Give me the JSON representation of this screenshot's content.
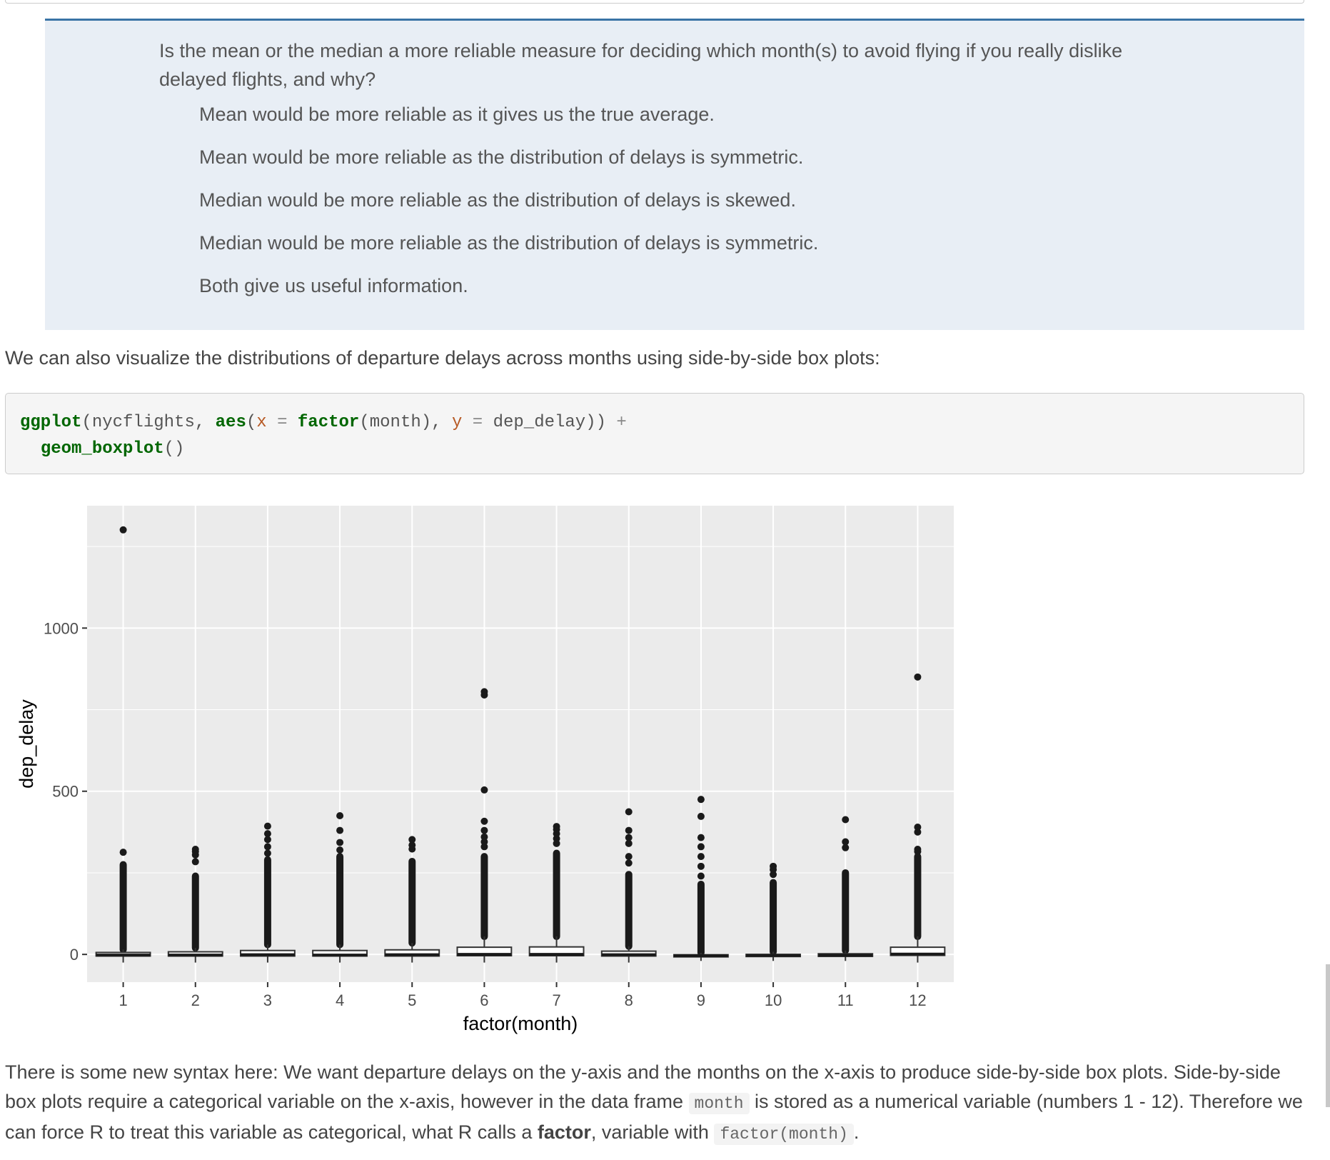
{
  "quiz": {
    "question": "Is the mean or the median a more reliable measure for deciding which month(s) to avoid flying if you really dislike delayed flights, and why?",
    "answers": [
      "Mean would be more reliable as it gives us the true average.",
      "Mean would be more reliable as the distribution of delays is symmetric.",
      "Median would be more reliable as the distribution of delays is skewed.",
      "Median would be more reliable as the distribution of delays is symmetric.",
      "Both give us useful information."
    ]
  },
  "intro_text": "We can also visualize the distributions of departure delays across months using side-by-side box plots:",
  "code": {
    "fn1": "ggplot",
    "p1": "(nycflights, ",
    "fn2": "aes",
    "p2": "(",
    "arg_x": "x",
    "eq1": " = ",
    "fn3": "factor",
    "p3": "(month), ",
    "arg_y": "y",
    "eq2": " = ",
    "p4": "dep_delay)) ",
    "plus": "+",
    "fn4": "geom_boxplot",
    "p5": "()"
  },
  "chart_data": {
    "type": "box",
    "xlabel": "factor(month)",
    "ylabel": "dep_delay",
    "ylim": [
      -85,
      1375
    ],
    "yticks": [
      0,
      500,
      1000
    ],
    "categories": [
      "1",
      "2",
      "3",
      "4",
      "5",
      "6",
      "7",
      "8",
      "9",
      "10",
      "11",
      "12"
    ],
    "boxes": [
      {
        "month": "1",
        "q1": -5,
        "median": -2,
        "q3": 6,
        "whisker_low": -25,
        "whisker_high": 15,
        "outlier_max": 275,
        "extra_outliers": [
          313,
          1301
        ]
      },
      {
        "month": "2",
        "q1": -5,
        "median": -2,
        "q3": 8,
        "whisker_low": -25,
        "whisker_high": 20,
        "outlier_max": 240,
        "extra_outliers": [
          284,
          305,
          315,
          322
        ]
      },
      {
        "month": "3",
        "q1": -5,
        "median": -1,
        "q3": 12,
        "whisker_low": -25,
        "whisker_high": 30,
        "outlier_max": 290,
        "extra_outliers": [
          310,
          330,
          352,
          370,
          393
        ]
      },
      {
        "month": "4",
        "q1": -5,
        "median": -2,
        "q3": 12,
        "whisker_low": -25,
        "whisker_high": 30,
        "outlier_max": 300,
        "extra_outliers": [
          320,
          343,
          380,
          425
        ]
      },
      {
        "month": "5",
        "q1": -5,
        "median": -1,
        "q3": 14,
        "whisker_low": -25,
        "whisker_high": 35,
        "outlier_max": 285,
        "extra_outliers": [
          323,
          335,
          352
        ]
      },
      {
        "month": "6",
        "q1": -4,
        "median": 0,
        "q3": 22,
        "whisker_low": -25,
        "whisker_high": 55,
        "outlier_max": 300,
        "extra_outliers": [
          330,
          345,
          360,
          380,
          408,
          504,
          795,
          805
        ]
      },
      {
        "month": "7",
        "q1": -4,
        "median": 0,
        "q3": 23,
        "whisker_low": -25,
        "whisker_high": 55,
        "outlier_max": 310,
        "extra_outliers": [
          340,
          355,
          370,
          383,
          392
        ]
      },
      {
        "month": "8",
        "q1": -5,
        "median": -1,
        "q3": 10,
        "whisker_low": -25,
        "whisker_high": 25,
        "outlier_max": 245,
        "extra_outliers": [
          280,
          300,
          340,
          358,
          380,
          437
        ]
      },
      {
        "month": "9",
        "q1": -7,
        "median": -4,
        "q3": -1,
        "whisker_low": -20,
        "whisker_high": 5,
        "outlier_max": 215,
        "extra_outliers": [
          240,
          270,
          300,
          330,
          358,
          423,
          475
        ]
      },
      {
        "month": "10",
        "q1": -6,
        "median": -3,
        "q3": 0,
        "whisker_low": -20,
        "whisker_high": 8,
        "outlier_max": 220,
        "extra_outliers": [
          245,
          260,
          270
        ]
      },
      {
        "month": "11",
        "q1": -6,
        "median": -3,
        "q3": 2,
        "whisker_low": -20,
        "whisker_high": 12,
        "outlier_max": 250,
        "extra_outliers": [
          327,
          345,
          413
        ]
      },
      {
        "month": "12",
        "q1": -3,
        "median": 1,
        "q3": 22,
        "whisker_low": -25,
        "whisker_high": 55,
        "outlier_max": 300,
        "extra_outliers": [
          315,
          322,
          375,
          390,
          850
        ]
      }
    ]
  },
  "explanation": {
    "s1": "There is some new syntax here: We want departure delays on the y-axis and the months on the x-axis to produce side-by-side box plots. Side-by-side box plots require a categorical variable on the x-axis, however in the data frame ",
    "code1": "month",
    "s2": " is stored as a numerical variable (numbers 1 - 12). Therefore we can force R to treat this variable as categorical, what R calls a ",
    "bold": "factor",
    "s3": ", variable with ",
    "code2": "factor(month)",
    "s4": "."
  }
}
